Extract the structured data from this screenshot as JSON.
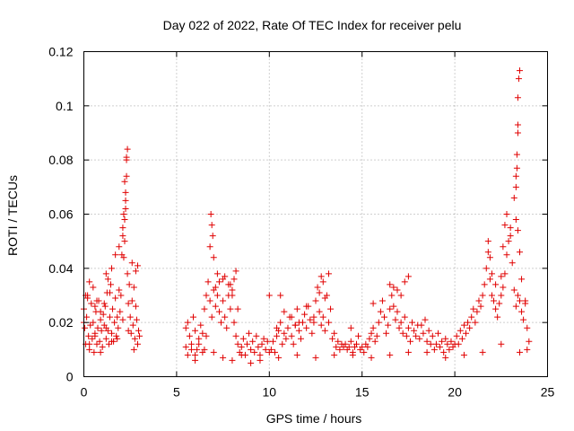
{
  "chart_data": {
    "type": "scatter",
    "title": "Day 022 of 2022, Rate Of TEC Index for receiver pelu",
    "xlabel": "GPS time / hours",
    "ylabel": "ROTI / TECUs",
    "xlim": [
      0,
      25
    ],
    "ylim": [
      0,
      0.12
    ],
    "xticks": [
      0,
      5,
      10,
      15,
      20,
      25
    ],
    "xtick_labels": [
      "0",
      "5",
      "10",
      "15",
      "20",
      "25"
    ],
    "yticks": [
      0,
      0.02,
      0.04,
      0.06,
      0.08,
      0.1,
      0.12
    ],
    "ytick_labels": [
      "0",
      "0.02",
      "0.04",
      "0.06",
      "0.08",
      "0.1",
      "0.12"
    ],
    "grid": true,
    "marker": "plus",
    "color": "#e00000",
    "series": [
      {
        "x": [
          0.0,
          0.05,
          0.1,
          0.15,
          0.2,
          0.25,
          0.3,
          0.35,
          0.4,
          0.45,
          0.5,
          0.55,
          0.6,
          0.65,
          0.7,
          0.75,
          0.8,
          0.85,
          0.9,
          0.95,
          1.0,
          1.05,
          1.1,
          1.15,
          1.2,
          1.25,
          1.3,
          1.35,
          1.4,
          1.45,
          1.5,
          1.55,
          1.6,
          1.65,
          1.7,
          1.75,
          1.8,
          1.85,
          1.9,
          1.95,
          2.0,
          2.05,
          2.1,
          2.15,
          2.2,
          2.25,
          2.3,
          2.35,
          2.4,
          2.45,
          2.5,
          2.55,
          2.6,
          2.65,
          2.7,
          2.75,
          2.8,
          2.85,
          2.9,
          2.95,
          3.0,
          0.1,
          0.3,
          0.5,
          0.7,
          0.9,
          1.1,
          1.3,
          1.5,
          1.7,
          1.9,
          2.1,
          2.25,
          2.3,
          2.35,
          2.2,
          2.25,
          2.3,
          2.2,
          2.15,
          2.6,
          2.8,
          2.9,
          1.2,
          1.4,
          0.2,
          0.6,
          5.5,
          5.6,
          5.7,
          5.8,
          5.9,
          6.0,
          6.1,
          6.2,
          6.3,
          6.4,
          6.5,
          6.6,
          6.7,
          6.8,
          6.9,
          7.0,
          7.1,
          7.2,
          7.3,
          7.4,
          7.5,
          7.6,
          7.7,
          7.8,
          7.9,
          8.0,
          8.1,
          8.2,
          8.3,
          8.4,
          8.5,
          8.6,
          8.7,
          8.8,
          8.9,
          9.0,
          9.1,
          9.2,
          9.3,
          9.4,
          9.5,
          9.6,
          9.7,
          9.8,
          9.9,
          10.0,
          6.8,
          6.85,
          6.9,
          6.95,
          7.0,
          7.2,
          7.5,
          7.8,
          8.0,
          8.2,
          5.6,
          5.8,
          6.0,
          6.2,
          6.4,
          6.6,
          7.1,
          7.3,
          7.6,
          7.9,
          8.1,
          8.3,
          10.1,
          10.2,
          10.3,
          10.4,
          10.5,
          10.6,
          10.7,
          10.8,
          10.9,
          11.0,
          11.1,
          11.2,
          11.3,
          11.4,
          11.5,
          11.6,
          11.7,
          11.8,
          11.9,
          12.0,
          12.1,
          12.2,
          12.3,
          12.4,
          12.5,
          12.6,
          12.7,
          12.8,
          12.9,
          13.0,
          13.1,
          13.2,
          13.3,
          13.4,
          13.5,
          13.6,
          13.7,
          13.8,
          13.9,
          14.0,
          10.0,
          10.4,
          10.8,
          11.2,
          11.6,
          12.0,
          12.4,
          12.8,
          12.9,
          13.0,
          13.2,
          12.7,
          11.4,
          10.6,
          14.1,
          14.2,
          14.3,
          14.4,
          14.5,
          14.6,
          14.7,
          14.8,
          14.9,
          15.0,
          15.1,
          15.2,
          15.3,
          15.4,
          15.5,
          15.6,
          15.7,
          15.8,
          15.9,
          16.0,
          16.1,
          16.2,
          16.3,
          16.4,
          16.5,
          16.6,
          16.7,
          16.8,
          16.9,
          17.0,
          17.1,
          17.2,
          17.3,
          17.4,
          17.5,
          17.6,
          17.7,
          17.8,
          17.9,
          18.0,
          16.5,
          16.7,
          16.9,
          17.1,
          17.3,
          17.5,
          15.6,
          14.4,
          18.1,
          18.2,
          18.3,
          18.4,
          18.5,
          18.6,
          18.7,
          18.8,
          18.9,
          19.0,
          19.1,
          19.2,
          19.3,
          19.4,
          19.5,
          19.6,
          19.7,
          19.8,
          19.9,
          20.0,
          20.1,
          20.2,
          20.3,
          20.4,
          20.5,
          20.6,
          20.7,
          20.8,
          20.9,
          21.0,
          21.1,
          21.2,
          21.3,
          21.4,
          21.5,
          21.6,
          21.7,
          21.8,
          21.9,
          22.0,
          22.1,
          22.2,
          22.3,
          22.4,
          22.5,
          22.6,
          22.7,
          22.8,
          22.9,
          23.0,
          23.1,
          23.2,
          23.3,
          23.4,
          23.5,
          23.6,
          23.7,
          23.8,
          23.9,
          24.0,
          21.8,
          21.9,
          22.0,
          22.2,
          22.5,
          22.6,
          22.7,
          22.8,
          23.0,
          23.2,
          23.3,
          23.35,
          23.4,
          23.4,
          23.45,
          23.5,
          23.4,
          23.35,
          23.3,
          23.3,
          23.4,
          23.5,
          23.6,
          23.8,
          0.0,
          0.3,
          0.6,
          0.9,
          1.2,
          1.5,
          1.8,
          2.1,
          2.4,
          2.7,
          5.5,
          6.0,
          6.5,
          7.0,
          7.5,
          8.0,
          8.5,
          9.0,
          9.5,
          10.5,
          11.5,
          12.5,
          13.5,
          14.5,
          15.5,
          16.5,
          17.5,
          18.5,
          19.5,
          20.5,
          21.5,
          22.5,
          23.5,
          23.9
        ],
        "y": [
          0.025,
          0.018,
          0.012,
          0.022,
          0.03,
          0.015,
          0.01,
          0.019,
          0.027,
          0.014,
          0.02,
          0.009,
          0.016,
          0.024,
          0.012,
          0.018,
          0.028,
          0.013,
          0.021,
          0.017,
          0.011,
          0.023,
          0.019,
          0.026,
          0.014,
          0.031,
          0.017,
          0.012,
          0.022,
          0.034,
          0.016,
          0.025,
          0.013,
          0.02,
          0.029,
          0.015,
          0.022,
          0.018,
          0.032,
          0.024,
          0.03,
          0.045,
          0.052,
          0.06,
          0.072,
          0.068,
          0.08,
          0.038,
          0.027,
          0.034,
          0.022,
          0.016,
          0.028,
          0.019,
          0.033,
          0.014,
          0.026,
          0.021,
          0.012,
          0.017,
          0.015,
          0.03,
          0.035,
          0.033,
          0.028,
          0.024,
          0.027,
          0.036,
          0.04,
          0.045,
          0.048,
          0.055,
          0.062,
          0.074,
          0.084,
          0.058,
          0.065,
          0.081,
          0.05,
          0.044,
          0.042,
          0.039,
          0.041,
          0.038,
          0.031,
          0.029,
          0.026,
          0.018,
          0.02,
          0.015,
          0.012,
          0.022,
          0.017,
          0.01,
          0.014,
          0.019,
          0.016,
          0.025,
          0.03,
          0.035,
          0.028,
          0.022,
          0.032,
          0.026,
          0.03,
          0.024,
          0.02,
          0.028,
          0.022,
          0.018,
          0.03,
          0.025,
          0.032,
          0.02,
          0.015,
          0.012,
          0.009,
          0.011,
          0.014,
          0.008,
          0.012,
          0.016,
          0.01,
          0.013,
          0.009,
          0.015,
          0.011,
          0.008,
          0.012,
          0.014,
          0.01,
          0.013,
          0.009,
          0.048,
          0.06,
          0.056,
          0.052,
          0.044,
          0.038,
          0.036,
          0.034,
          0.03,
          0.039,
          0.008,
          0.01,
          0.006,
          0.012,
          0.009,
          0.015,
          0.033,
          0.035,
          0.037,
          0.034,
          0.036,
          0.025,
          0.01,
          0.013,
          0.009,
          0.015,
          0.017,
          0.02,
          0.012,
          0.016,
          0.014,
          0.018,
          0.022,
          0.015,
          0.012,
          0.019,
          0.025,
          0.017,
          0.014,
          0.02,
          0.023,
          0.018,
          0.026,
          0.021,
          0.016,
          0.02,
          0.028,
          0.033,
          0.024,
          0.019,
          0.022,
          0.017,
          0.03,
          0.02,
          0.025,
          0.014,
          0.016,
          0.011,
          0.013,
          0.01,
          0.012,
          0.011,
          0.03,
          0.018,
          0.024,
          0.022,
          0.02,
          0.026,
          0.022,
          0.037,
          0.035,
          0.029,
          0.038,
          0.031,
          0.019,
          0.03,
          0.012,
          0.01,
          0.011,
          0.013,
          0.009,
          0.011,
          0.012,
          0.015,
          0.01,
          0.011,
          0.009,
          0.012,
          0.011,
          0.014,
          0.016,
          0.018,
          0.013,
          0.015,
          0.02,
          0.024,
          0.028,
          0.022,
          0.016,
          0.019,
          0.025,
          0.03,
          0.026,
          0.021,
          0.024,
          0.018,
          0.02,
          0.016,
          0.022,
          0.015,
          0.018,
          0.013,
          0.02,
          0.017,
          0.015,
          0.019,
          0.034,
          0.033,
          0.032,
          0.03,
          0.035,
          0.037,
          0.027,
          0.018,
          0.014,
          0.019,
          0.016,
          0.021,
          0.013,
          0.017,
          0.012,
          0.015,
          0.01,
          0.012,
          0.016,
          0.011,
          0.013,
          0.009,
          0.014,
          0.012,
          0.01,
          0.013,
          0.011,
          0.012,
          0.015,
          0.012,
          0.017,
          0.014,
          0.019,
          0.016,
          0.02,
          0.018,
          0.022,
          0.025,
          0.02,
          0.024,
          0.028,
          0.026,
          0.03,
          0.034,
          0.04,
          0.046,
          0.036,
          0.03,
          0.028,
          0.025,
          0.022,
          0.027,
          0.03,
          0.033,
          0.038,
          0.045,
          0.05,
          0.055,
          0.042,
          0.032,
          0.026,
          0.03,
          0.028,
          0.024,
          0.021,
          0.027,
          0.018,
          0.013,
          0.05,
          0.044,
          0.038,
          0.034,
          0.037,
          0.048,
          0.056,
          0.06,
          0.052,
          0.066,
          0.074,
          0.082,
          0.09,
          0.103,
          0.11,
          0.113,
          0.093,
          0.077,
          0.07,
          0.058,
          0.054,
          0.046,
          0.036,
          0.028,
          0.02,
          0.012,
          0.015,
          0.009,
          0.018,
          0.013,
          0.014,
          0.021,
          0.017,
          0.01,
          0.011,
          0.008,
          0.01,
          0.009,
          0.007,
          0.006,
          0.008,
          0.005,
          0.006,
          0.007,
          0.008,
          0.007,
          0.008,
          0.008,
          0.007,
          0.008,
          0.009,
          0.009,
          0.007,
          0.008,
          0.009,
          0.012,
          0.009,
          0.01
        ]
      }
    ]
  }
}
